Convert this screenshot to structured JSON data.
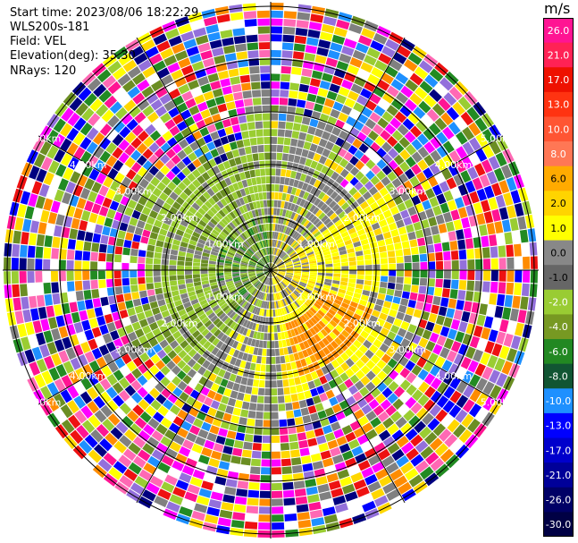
{
  "header": {
    "start_time": "Start time: 2023/08/06 18:22:29",
    "instrument": "WLS200s-181",
    "field": "Field: VEL",
    "elevation": "Elevation(deg): 35.30",
    "nrays": "NRays: 120"
  },
  "colorbar": {
    "unit": "m/s",
    "ticks": [
      "26.0",
      "21.0",
      "17.0",
      "13.0",
      "10.0",
      "8.0",
      "6.0",
      "2.0",
      "1.0",
      "0.0",
      "-1.0",
      "-2.0",
      "-4.0",
      "-6.0",
      "-8.0",
      "-10.0",
      "-13.0",
      "-17.0",
      "-21.0",
      "-26.0",
      "-30.0"
    ],
    "colors": [
      "#ff1493",
      "#ff2255",
      "#ee1100",
      "#ff3311",
      "#ff5533",
      "#ff7755",
      "#ffaa00",
      "#ffd400",
      "#ffff00",
      "#888888",
      "#666666",
      "#99cc33",
      "#779922",
      "#228822",
      "#115533",
      "#1e90ff",
      "#0000ff",
      "#0000cc",
      "#000099",
      "#000066",
      "#000044"
    ]
  },
  "chart_data": {
    "type": "ppi",
    "field": "VEL",
    "units": "m/s",
    "nrays": 120,
    "elevation_deg": 35.3,
    "range_rings_km": [
      1,
      2,
      3,
      4,
      5
    ],
    "ring_labels": [
      "1.00km",
      "2.00km",
      "3.00km",
      "4.00km",
      "5.00km"
    ],
    "vmin": -30.0,
    "vmax": 26.0
  }
}
